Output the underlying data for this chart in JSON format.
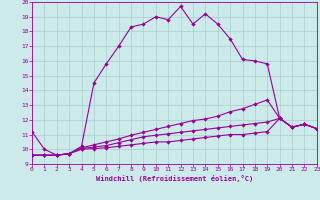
{
  "xlabel": "Windchill (Refroidissement éolien,°C)",
  "bg_color": "#cceaea",
  "line_color": "#990099",
  "grid_color": "#aacccc",
  "xlim": [
    0,
    23
  ],
  "ylim": [
    9,
    20
  ],
  "xticks": [
    0,
    1,
    2,
    3,
    4,
    5,
    6,
    7,
    8,
    9,
    10,
    11,
    12,
    13,
    14,
    15,
    16,
    17,
    18,
    19,
    20,
    21,
    22,
    23
  ],
  "yticks": [
    9,
    10,
    11,
    12,
    13,
    14,
    15,
    16,
    17,
    18,
    19,
    20
  ],
  "series1_x": [
    0,
    1,
    2,
    3,
    4,
    5,
    6,
    7,
    8,
    9,
    10,
    11,
    12,
    13,
    14,
    15,
    16,
    17,
    18,
    19,
    20,
    21,
    22,
    23
  ],
  "series1_y": [
    11.2,
    10.0,
    9.6,
    9.7,
    10.2,
    14.5,
    15.8,
    17.0,
    18.3,
    18.5,
    19.0,
    18.8,
    19.7,
    18.5,
    19.2,
    18.5,
    17.5,
    16.1,
    16.0,
    15.8,
    12.1,
    11.5,
    11.7,
    11.4
  ],
  "series2_x": [
    0,
    1,
    2,
    3,
    4,
    5,
    6,
    7,
    8,
    9,
    10,
    11,
    12,
    13,
    14,
    15,
    16,
    17,
    18,
    19,
    20,
    21,
    22,
    23
  ],
  "series2_y": [
    9.6,
    9.6,
    9.6,
    9.7,
    10.1,
    10.3,
    10.5,
    10.7,
    10.95,
    11.15,
    11.35,
    11.55,
    11.75,
    11.95,
    12.05,
    12.25,
    12.55,
    12.75,
    13.05,
    13.35,
    12.1,
    11.5,
    11.7,
    11.4
  ],
  "series3_x": [
    0,
    1,
    2,
    3,
    4,
    5,
    6,
    7,
    8,
    9,
    10,
    11,
    12,
    13,
    14,
    15,
    16,
    17,
    18,
    19,
    20,
    21,
    22,
    23
  ],
  "series3_y": [
    9.6,
    9.6,
    9.6,
    9.7,
    10.05,
    10.15,
    10.25,
    10.45,
    10.65,
    10.85,
    10.95,
    11.05,
    11.15,
    11.25,
    11.35,
    11.45,
    11.55,
    11.65,
    11.75,
    11.85,
    12.1,
    11.5,
    11.7,
    11.4
  ],
  "series4_x": [
    0,
    1,
    2,
    3,
    4,
    5,
    6,
    7,
    8,
    9,
    10,
    11,
    12,
    13,
    14,
    15,
    16,
    17,
    18,
    19,
    20,
    21,
    22,
    23
  ],
  "series4_y": [
    9.6,
    9.6,
    9.6,
    9.7,
    10.0,
    10.05,
    10.1,
    10.2,
    10.3,
    10.4,
    10.5,
    10.5,
    10.6,
    10.7,
    10.8,
    10.9,
    11.0,
    11.0,
    11.1,
    11.2,
    12.1,
    11.5,
    11.7,
    11.4
  ]
}
